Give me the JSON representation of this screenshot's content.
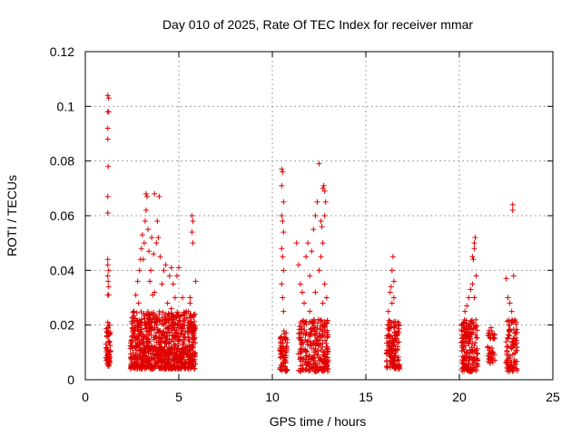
{
  "chart_data": {
    "type": "scatter",
    "title": "Day 010 of 2025, Rate Of TEC Index for receiver mmar",
    "xlabel": "GPS time / hours",
    "ylabel": "ROTI / TECUs",
    "xlim": [
      0,
      25
    ],
    "ylim": [
      0,
      0.12
    ],
    "xticks": [
      "0",
      "5",
      "10",
      "15",
      "20",
      "25"
    ],
    "yticks": [
      "0",
      "0.02",
      "0.04",
      "0.06",
      "0.08",
      "0.1",
      "0.12"
    ],
    "grid": true,
    "marker": "+",
    "color": "#e00000",
    "clusters": [
      {
        "x_range": [
          1.1,
          1.35
        ],
        "y_range": [
          0.005,
          0.02
        ],
        "density": 60
      },
      {
        "x_range": [
          2.4,
          5.9
        ],
        "y_range": [
          0.004,
          0.025
        ],
        "density": 900
      },
      {
        "x_range": [
          10.4,
          10.8
        ],
        "y_range": [
          0.003,
          0.018
        ],
        "density": 70
      },
      {
        "x_range": [
          11.4,
          13.0
        ],
        "y_range": [
          0.003,
          0.022
        ],
        "density": 260
      },
      {
        "x_range": [
          16.1,
          16.8
        ],
        "y_range": [
          0.004,
          0.022
        ],
        "density": 140
      },
      {
        "x_range": [
          20.1,
          21.0
        ],
        "y_range": [
          0.003,
          0.022
        ],
        "density": 180
      },
      {
        "x_range": [
          21.5,
          21.9
        ],
        "y_range": [
          0.006,
          0.018
        ],
        "density": 40
      },
      {
        "x_range": [
          22.5,
          23.1
        ],
        "y_range": [
          0.003,
          0.022
        ],
        "density": 100
      }
    ],
    "points": [
      [
        1.2,
        0.104
      ],
      [
        1.25,
        0.103
      ],
      [
        1.2,
        0.098
      ],
      [
        1.25,
        0.098
      ],
      [
        1.2,
        0.092
      ],
      [
        1.2,
        0.088
      ],
      [
        1.22,
        0.078
      ],
      [
        1.2,
        0.067
      ],
      [
        1.2,
        0.061
      ],
      [
        1.2,
        0.044
      ],
      [
        1.2,
        0.042
      ],
      [
        1.25,
        0.04
      ],
      [
        1.2,
        0.038
      ],
      [
        1.22,
        0.036
      ],
      [
        1.25,
        0.034
      ],
      [
        1.2,
        0.031
      ],
      [
        1.25,
        0.031
      ],
      [
        1.2,
        0.021
      ],
      [
        2.6,
        0.025
      ],
      [
        2.7,
        0.031
      ],
      [
        2.8,
        0.036
      ],
      [
        2.9,
        0.04
      ],
      [
        2.95,
        0.044
      ],
      [
        3.0,
        0.048
      ],
      [
        3.05,
        0.053
      ],
      [
        3.1,
        0.044
      ],
      [
        3.15,
        0.05
      ],
      [
        3.2,
        0.058
      ],
      [
        3.25,
        0.062
      ],
      [
        3.3,
        0.067
      ],
      [
        3.25,
        0.068
      ],
      [
        3.35,
        0.055
      ],
      [
        3.4,
        0.047
      ],
      [
        3.5,
        0.04
      ],
      [
        3.6,
        0.031
      ],
      [
        3.7,
        0.068
      ],
      [
        3.8,
        0.05
      ],
      [
        3.85,
        0.058
      ],
      [
        3.9,
        0.052
      ],
      [
        4.0,
        0.045
      ],
      [
        3.95,
        0.067
      ],
      [
        4.1,
        0.035
      ],
      [
        4.2,
        0.04
      ],
      [
        4.3,
        0.042
      ],
      [
        4.5,
        0.038
      ],
      [
        4.6,
        0.041
      ],
      [
        4.7,
        0.035
      ],
      [
        4.8,
        0.03
      ],
      [
        4.9,
        0.038
      ],
      [
        5.0,
        0.041
      ],
      [
        5.2,
        0.03
      ],
      [
        5.4,
        0.025
      ],
      [
        5.6,
        0.028
      ],
      [
        5.7,
        0.06
      ],
      [
        5.75,
        0.058
      ],
      [
        5.7,
        0.054
      ],
      [
        5.75,
        0.05
      ],
      [
        5.9,
        0.036
      ],
      [
        5.6,
        0.03
      ],
      [
        3.45,
        0.036
      ],
      [
        3.7,
        0.032
      ],
      [
        4.4,
        0.028
      ],
      [
        4.6,
        0.026
      ],
      [
        2.85,
        0.028
      ],
      [
        3.55,
        0.052
      ],
      [
        3.65,
        0.046
      ],
      [
        10.5,
        0.077
      ],
      [
        10.55,
        0.076
      ],
      [
        10.5,
        0.071
      ],
      [
        10.6,
        0.065
      ],
      [
        10.5,
        0.06
      ],
      [
        10.55,
        0.058
      ],
      [
        10.6,
        0.054
      ],
      [
        10.5,
        0.048
      ],
      [
        10.55,
        0.045
      ],
      [
        10.6,
        0.04
      ],
      [
        10.5,
        0.035
      ],
      [
        10.55,
        0.03
      ],
      [
        10.6,
        0.025
      ],
      [
        11.3,
        0.05
      ],
      [
        11.4,
        0.042
      ],
      [
        11.5,
        0.035
      ],
      [
        11.6,
        0.032
      ],
      [
        11.8,
        0.045
      ],
      [
        11.9,
        0.05
      ],
      [
        12.0,
        0.038
      ],
      [
        12.1,
        0.047
      ],
      [
        12.2,
        0.055
      ],
      [
        12.3,
        0.06
      ],
      [
        12.4,
        0.065
      ],
      [
        12.5,
        0.079
      ],
      [
        12.6,
        0.058
      ],
      [
        12.65,
        0.056
      ],
      [
        12.7,
        0.07
      ],
      [
        12.75,
        0.071
      ],
      [
        12.8,
        0.069
      ],
      [
        12.85,
        0.065
      ],
      [
        12.8,
        0.06
      ],
      [
        12.7,
        0.05
      ],
      [
        12.6,
        0.045
      ],
      [
        12.5,
        0.04
      ],
      [
        12.8,
        0.035
      ],
      [
        12.9,
        0.03
      ],
      [
        12.7,
        0.028
      ],
      [
        12.3,
        0.032
      ],
      [
        12.0,
        0.025
      ],
      [
        11.7,
        0.028
      ],
      [
        16.45,
        0.045
      ],
      [
        16.4,
        0.04
      ],
      [
        16.5,
        0.036
      ],
      [
        16.35,
        0.034
      ],
      [
        16.3,
        0.032
      ],
      [
        16.5,
        0.03
      ],
      [
        16.4,
        0.028
      ],
      [
        16.2,
        0.025
      ],
      [
        20.3,
        0.025
      ],
      [
        20.4,
        0.027
      ],
      [
        20.5,
        0.03
      ],
      [
        20.6,
        0.033
      ],
      [
        20.7,
        0.035
      ],
      [
        20.75,
        0.044
      ],
      [
        20.8,
        0.05
      ],
      [
        20.85,
        0.052
      ],
      [
        20.8,
        0.048
      ],
      [
        20.7,
        0.045
      ],
      [
        20.9,
        0.038
      ],
      [
        20.8,
        0.03
      ],
      [
        21.6,
        0.018
      ],
      [
        21.7,
        0.019
      ],
      [
        22.85,
        0.064
      ],
      [
        22.85,
        0.062
      ],
      [
        22.9,
        0.038
      ],
      [
        22.5,
        0.037
      ],
      [
        22.6,
        0.03
      ],
      [
        22.7,
        0.028
      ],
      [
        22.8,
        0.025
      ]
    ]
  }
}
